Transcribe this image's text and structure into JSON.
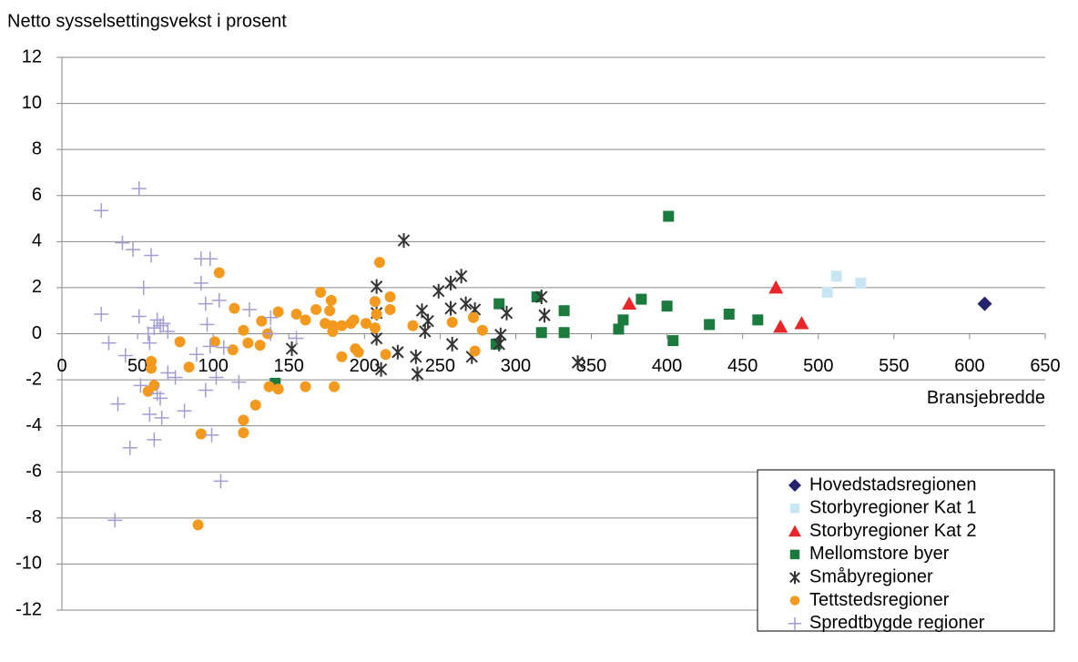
{
  "chart_data": {
    "type": "scatter",
    "y_axis_label": "Netto sysselsettingsvekst i prosent",
    "x_axis_label": "Bransjebredde",
    "xlim": [
      0,
      650
    ],
    "xticks": [
      0,
      50,
      100,
      150,
      200,
      250,
      300,
      350,
      400,
      450,
      500,
      550,
      600,
      650
    ],
    "ylim": [
      -12,
      12
    ],
    "yticks": [
      -12,
      -10,
      -8,
      -6,
      -4,
      -2,
      0,
      2,
      4,
      6,
      8,
      10,
      12
    ],
    "grid": true,
    "legend": "lower right",
    "series": [
      {
        "name": "Hovedstadsregionen",
        "color": "#23236e",
        "marker": "diamond",
        "x": [
          610
        ],
        "values": [
          1.3
        ]
      },
      {
        "name": "Storbyregioner Kat 1",
        "color": "#c9e7f2",
        "marker": "square",
        "x": [
          512,
          528,
          506
        ],
        "values": [
          2.5,
          2.2,
          1.8
        ]
      },
      {
        "name": "Storbyregioner Kat 2",
        "color": "#e8262a",
        "marker": "triangle",
        "x": [
          472,
          375,
          475,
          489
        ],
        "values": [
          2.0,
          1.3,
          0.3,
          0.45
        ]
      },
      {
        "name": "Mellomstore byer",
        "color": "#1b7a3e",
        "marker": "square",
        "x": [
          401,
          289,
          314,
          332,
          383,
          400,
          441,
          428,
          460,
          371,
          368,
          317,
          332,
          404,
          287,
          141
        ],
        "values": [
          5.1,
          1.3,
          1.6,
          1.0,
          1.5,
          1.2,
          0.85,
          0.4,
          0.6,
          0.6,
          0.2,
          0.05,
          0.05,
          -0.3,
          -0.45,
          -2.15
        ]
      },
      {
        "name": "Småbyregioner",
        "color": "#333333",
        "marker": "asterisk",
        "x": [
          226,
          208,
          264,
          257,
          249,
          238,
          257,
          267,
          273,
          317,
          319,
          294,
          242,
          240,
          208,
          208,
          258,
          290,
          289,
          271,
          234,
          222,
          235,
          211,
          152,
          341
        ],
        "values": [
          4.05,
          2.05,
          2.5,
          2.2,
          1.85,
          1.0,
          1.1,
          1.3,
          1.05,
          1.6,
          0.8,
          0.9,
          0.55,
          0.1,
          0.9,
          -0.2,
          -0.45,
          -0.05,
          -0.45,
          -1.0,
          -1.0,
          -0.8,
          -1.75,
          -1.55,
          -0.65,
          -1.25
        ]
      },
      {
        "name": "Tettstedsregioner",
        "color": "#f39a1e",
        "marker": "circle",
        "x": [
          210,
          104,
          171,
          178,
          217,
          207,
          114,
          168,
          177,
          217,
          143,
          155,
          208,
          132,
          161,
          193,
          174,
          179,
          185,
          191,
          201,
          207,
          120,
          136,
          179,
          232,
          258,
          272,
          278,
          101,
          78,
          123,
          131,
          113,
          194,
          273,
          185,
          196,
          214,
          84,
          59,
          59,
          61,
          57,
          137,
          143,
          161,
          180,
          128,
          120,
          120,
          92,
          90
        ],
        "values": [
          3.1,
          2.65,
          1.8,
          1.45,
          1.6,
          1.4,
          1.1,
          1.05,
          1.0,
          1.05,
          0.95,
          0.85,
          0.85,
          0.55,
          0.6,
          0.6,
          0.45,
          0.35,
          0.35,
          0.45,
          0.45,
          0.25,
          0.15,
          0.0,
          0.1,
          0.35,
          0.5,
          0.7,
          0.15,
          -0.35,
          -0.35,
          -0.4,
          -0.5,
          -0.7,
          -0.65,
          -0.75,
          -1.0,
          -0.8,
          -0.9,
          -1.45,
          -1.2,
          -1.5,
          -2.25,
          -2.5,
          -2.3,
          -2.4,
          -2.3,
          -2.3,
          -3.1,
          -3.75,
          -4.3,
          -4.35,
          -8.3
        ]
      },
      {
        "name": "Spredtbygde regioner",
        "color": "#a29dd2",
        "marker": "plus",
        "x": [
          51,
          26,
          40,
          47,
          59,
          92,
          98,
          54,
          92,
          104,
          95,
          124,
          26,
          51,
          63,
          67,
          65,
          61,
          70,
          57,
          96,
          31,
          58,
          98,
          138,
          138,
          155,
          42,
          89,
          107,
          70,
          75,
          102,
          117,
          52,
          63,
          65,
          95,
          37,
          81,
          58,
          66,
          61,
          99,
          45,
          105,
          35
        ],
        "values": [
          6.3,
          5.35,
          3.95,
          3.65,
          3.4,
          3.25,
          3.25,
          2.0,
          2.2,
          1.45,
          1.3,
          1.05,
          0.85,
          0.75,
          0.6,
          0.45,
          0.35,
          0.25,
          0.1,
          0.0,
          0.4,
          -0.4,
          -0.4,
          -0.55,
          0.7,
          0.0,
          -0.2,
          -0.95,
          -0.9,
          -0.6,
          -1.7,
          -1.9,
          -1.9,
          -2.1,
          -2.25,
          -2.6,
          -2.8,
          -2.45,
          -3.05,
          -3.35,
          -3.5,
          -3.65,
          -4.6,
          -4.4,
          -4.95,
          -6.4,
          -8.1
        ]
      }
    ]
  }
}
